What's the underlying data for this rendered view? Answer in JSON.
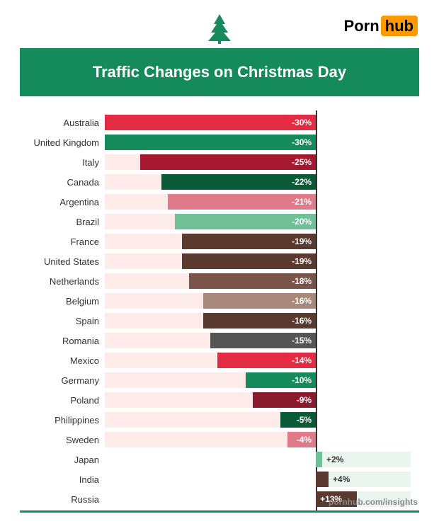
{
  "logo": {
    "part1": "Porn",
    "part2": "hub"
  },
  "title": "Traffic Changes on Christmas Day",
  "footer": "pornhub.com/insights",
  "chart": {
    "type": "bar",
    "zero_position_pct": 69,
    "max_positive": 30,
    "max_negative": 30,
    "tree_color": "#158a5a",
    "banner_color": "#158a5a",
    "bg_neg": "#fdebea",
    "bg_pos": "#eaf5ef",
    "axis_color": "#333333",
    "rows": [
      {
        "country": "Australia",
        "value": -30,
        "label": "-30%",
        "color": "#e42b44",
        "text": "#ffffff"
      },
      {
        "country": "United Kingdom",
        "value": -30,
        "label": "-30%",
        "color": "#158a5a",
        "text": "#ffffff"
      },
      {
        "country": "Italy",
        "value": -25,
        "label": "-25%",
        "color": "#a51830",
        "text": "#ffffff"
      },
      {
        "country": "Canada",
        "value": -22,
        "label": "-22%",
        "color": "#0a5a3a",
        "text": "#ffffff"
      },
      {
        "country": "Argentina",
        "value": -21,
        "label": "-21%",
        "color": "#e07a8a",
        "text": "#ffffff"
      },
      {
        "country": "Brazil",
        "value": -20,
        "label": "-20%",
        "color": "#6fbf97",
        "text": "#ffffff"
      },
      {
        "country": "France",
        "value": -19,
        "label": "-19%",
        "color": "#5a3a2e",
        "text": "#ffffff"
      },
      {
        "country": "United States",
        "value": -19,
        "label": "-19%",
        "color": "#5a3a2e",
        "text": "#ffffff"
      },
      {
        "country": "Netherlands",
        "value": -18,
        "label": "-18%",
        "color": "#7a5448",
        "text": "#ffffff"
      },
      {
        "country": "Belgium",
        "value": -16,
        "label": "-16%",
        "color": "#a88878",
        "text": "#ffffff"
      },
      {
        "country": "Spain",
        "value": -16,
        "label": "-16%",
        "color": "#5a3a2e",
        "text": "#ffffff"
      },
      {
        "country": "Romania",
        "value": -15,
        "label": "-15%",
        "color": "#555555",
        "text": "#ffffff"
      },
      {
        "country": "Mexico",
        "value": -14,
        "label": "-14%",
        "color": "#e42b44",
        "text": "#ffffff"
      },
      {
        "country": "Germany",
        "value": -10,
        "label": "-10%",
        "color": "#158a5a",
        "text": "#ffffff"
      },
      {
        "country": "Poland",
        "value": -9,
        "label": "-9%",
        "color": "#8a1a2e",
        "text": "#ffffff"
      },
      {
        "country": "Philippines",
        "value": -5,
        "label": "-5%",
        "color": "#0a5a3a",
        "text": "#ffffff"
      },
      {
        "country": "Sweden",
        "value": -4,
        "label": "-4%",
        "color": "#e07a8a",
        "text": "#ffffff"
      },
      {
        "country": "Japan",
        "value": 2,
        "label": "+2%",
        "color": "#6fbf97",
        "text": "#333333"
      },
      {
        "country": "India",
        "value": 4,
        "label": "+4%",
        "color": "#5a3a2e",
        "text": "#ffffff"
      },
      {
        "country": "Russia",
        "value": 13,
        "label": "+13%",
        "color": "#5a3a2e",
        "text": "#ffffff"
      }
    ]
  }
}
